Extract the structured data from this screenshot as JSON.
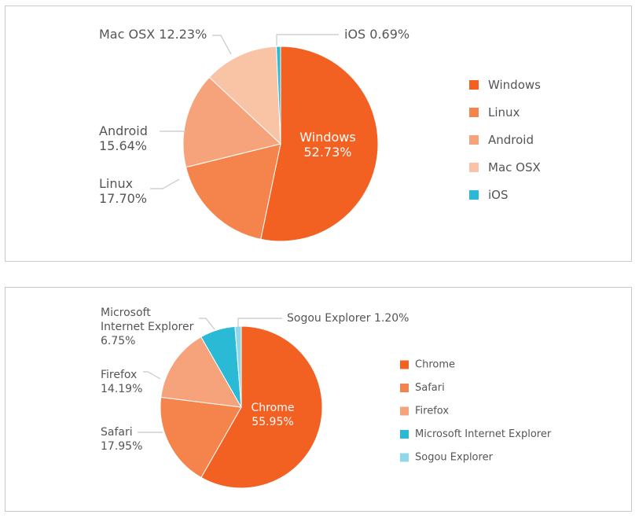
{
  "colors": {
    "text": "#555555",
    "line": "#c8c8c8",
    "border": "#c9c9c9"
  },
  "chart_data": [
    {
      "type": "pie",
      "series": [
        {
          "label": "Windows",
          "value": 52.73,
          "value_text": "52.73%",
          "color": "#f26122"
        },
        {
          "label": "Linux",
          "value": 17.7,
          "value_text": "17.70%",
          "color": "#f4844c"
        },
        {
          "label": "Android",
          "value": 15.64,
          "value_text": "15.64%",
          "color": "#f6a27a"
        },
        {
          "label": "Mac OSX",
          "value": 12.23,
          "value_text": "12.23%",
          "color": "#f9c3a6"
        },
        {
          "label": "iOS",
          "value": 0.69,
          "value_text": "0.69%",
          "color": "#2bbad6"
        }
      ],
      "legend": "right"
    },
    {
      "type": "pie",
      "series": [
        {
          "label": "Chrome",
          "value": 55.95,
          "value_text": "55.95%",
          "color": "#f26122"
        },
        {
          "label": "Safari",
          "value": 17.95,
          "value_text": "17.95%",
          "color": "#f4844c"
        },
        {
          "label": "Firefox",
          "value": 14.19,
          "value_text": "14.19%",
          "color": "#f6a27a"
        },
        {
          "label": "Microsoft Internet Explorer",
          "value": 6.75,
          "value_text": "6.75%",
          "color": "#2bbad6"
        },
        {
          "label": "Sogou Explorer",
          "value": 1.2,
          "value_text": "1.20%",
          "color": "#8fd8ea"
        }
      ],
      "callout_lines": [
        [
          "Microsoft",
          "Internet Explorer",
          "6.75%"
        ]
      ],
      "legend": "right"
    }
  ]
}
